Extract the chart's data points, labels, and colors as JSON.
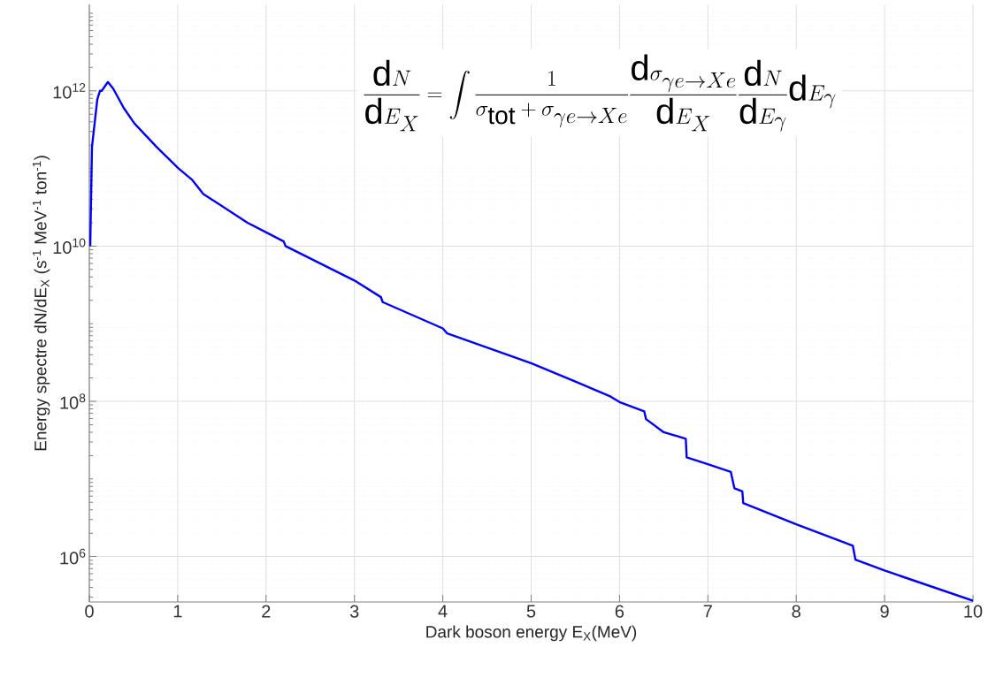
{
  "chart_data": {
    "type": "line",
    "xlabel": "Dark boson energy E$_{X}$(MeV)",
    "ylabel": "Energy spectre dN/dE$_{X}$ (s$^{-1}$ MeV$^{-1}$ ton$^{-1}$)",
    "annotations": [
      "\\frac{\\mathrm{d}N}{\\mathrm{d}E_X}=\\int\\frac{1}{\\sigma_{\\mathrm{tot}}+\\sigma_{\\gamma e\\to Xe}}\\frac{\\mathrm{d}\\sigma_{\\gamma e\\to Xe}}{\\mathrm{d}E_X}\\frac{\\mathrm{d}N}{\\mathrm{d}E_\\gamma}\\mathrm{d}E_\\gamma"
    ],
    "log": "y",
    "grid": true,
    "xlim": [
      0,
      10
    ],
    "ylim": [
      260000.0,
      13000000000000.0
    ],
    "xticks": [
      0,
      1,
      2,
      3,
      4,
      5,
      6,
      7,
      8,
      9,
      10
    ],
    "yticks": [
      {
        "value": 1000000.0,
        "label": "10$^{6}$"
      },
      {
        "value": 100000000.0,
        "label": "10$^{8}$"
      },
      {
        "value": 10000000000.0,
        "label": "10$^{10}$"
      },
      {
        "value": 1000000000000.0,
        "label": "10$^{12}$"
      }
    ],
    "series": [
      {
        "color": "#0000ff",
        "x": [
          0.01,
          0.03,
          0.09,
          0.12,
          0.14,
          0.21,
          0.27,
          0.39,
          0.51,
          0.76,
          1.01,
          1.16,
          1.29,
          1.79,
          2.2,
          2.22,
          3.0,
          3.3,
          3.32,
          4.0,
          4.05,
          5.0,
          5.5,
          5.9,
          6.0,
          6.28,
          6.3,
          6.5,
          6.75,
          6.76,
          7.0,
          7.26,
          7.3,
          7.39,
          7.4,
          8.0,
          8.43,
          8.64,
          8.67,
          9.0,
          10.0
        ],
        "values": [
          10000000000.0,
          190000000000.0,
          780000000000.0,
          1000000000000.0,
          1000000000000.0,
          1300000000000.0,
          1070000000000.0,
          600000000000.0,
          380000000000.0,
          190000000000.0,
          100000000000.0,
          72000000000.0,
          47000000000.0,
          20000000000.0,
          11500000000.0,
          10000000000.0,
          3600000000.0,
          2200000000.0,
          1900000000.0,
          870000000.0,
          750000000.0,
          310000000.0,
          180000000.0,
          115000000.0,
          98000000.0,
          74000000.0,
          59000000.0,
          40000000.0,
          33000000.0,
          19000000.0,
          15500000.0,
          12300000.0,
          7600000.0,
          6900000.0,
          4900000.0,
          2600000.0,
          1700000.0,
          1380000.0,
          910000.0,
          660000.0,
          270000.0
        ]
      }
    ]
  }
}
